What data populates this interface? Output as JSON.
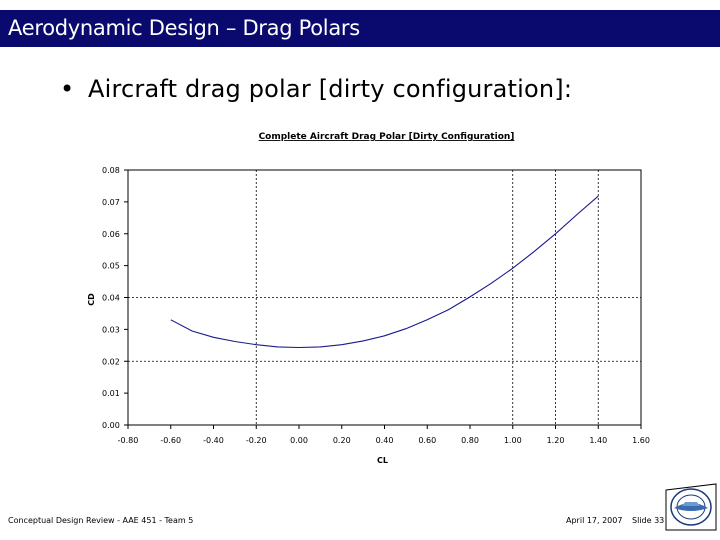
{
  "slide": {
    "title": "Aerodynamic Design – Drag Polars",
    "bullet": "Aircraft drag polar [dirty configuration]:",
    "footer_left": "Conceptual Design Review - AAE 451 - Team 5",
    "footer_date": "April 17, 2007",
    "footer_slide": "Slide 33"
  },
  "colors": {
    "title_bar": "#0a0a6e",
    "curve": "#1a1a8c"
  },
  "chart_data": {
    "type": "line",
    "title": "Complete Aircraft Drag Polar [Dirty Configuration]",
    "xlabel": "CL",
    "ylabel": "CD",
    "xlim": [
      -0.8,
      1.6
    ],
    "ylim": [
      0.0,
      0.08
    ],
    "xticks": [
      "-0.80",
      "-0.60",
      "-0.40",
      "-0.20",
      "0.00",
      "0.20",
      "0.40",
      "0.60",
      "0.80",
      "1.00",
      "1.20",
      "1.40",
      "1.60"
    ],
    "yticks": [
      "0.00",
      "0.01",
      "0.02",
      "0.03",
      "0.04",
      "0.05",
      "0.06",
      "0.07",
      "0.08"
    ],
    "grid": false,
    "vertical_reference_lines": [
      -0.2,
      1.0,
      1.2,
      1.4
    ],
    "horizontal_reference_lines": [
      0.02,
      0.04
    ],
    "series": [
      {
        "x": [
          -0.6,
          -0.5,
          -0.4,
          -0.3,
          -0.2,
          -0.1,
          0.0,
          0.1,
          0.2,
          0.3,
          0.4,
          0.5,
          0.6,
          0.7,
          0.8,
          0.9,
          1.0,
          1.1,
          1.2,
          1.3,
          1.4
        ],
        "y": [
          0.033,
          0.0295,
          0.0275,
          0.0262,
          0.0252,
          0.0245,
          0.0243,
          0.0245,
          0.0252,
          0.0264,
          0.028,
          0.0302,
          0.033,
          0.0362,
          0.0402,
          0.0445,
          0.0492,
          0.0544,
          0.06,
          0.066,
          0.0718
        ]
      }
    ]
  }
}
